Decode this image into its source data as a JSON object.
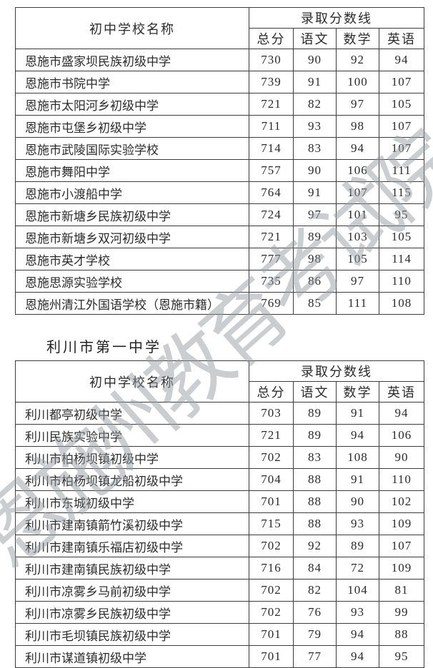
{
  "watermark": {
    "text": "恩施州教育考试院",
    "color": "#969EA5"
  },
  "colors": {
    "text": "#2B2B2B",
    "border": "#3C3C3C"
  },
  "tables": [
    {
      "title": "",
      "header": {
        "school_col": "初中学校名称",
        "score_group": "录取分数线",
        "subjects": [
          "总分",
          "语文",
          "数学",
          "英语"
        ]
      },
      "rows": [
        {
          "school": "恩施市盛家坝民族初级中学",
          "scores": [
            730,
            90,
            92,
            94
          ]
        },
        {
          "school": "恩施市书院中学",
          "scores": [
            739,
            91,
            100,
            107
          ]
        },
        {
          "school": "恩施市太阳河乡初级中学",
          "scores": [
            721,
            82,
            97,
            105
          ]
        },
        {
          "school": "恩施市屯堡乡初级中学",
          "scores": [
            711,
            93,
            98,
            107
          ]
        },
        {
          "school": "恩施市武陵国际实验学校",
          "scores": [
            714,
            83,
            94,
            107
          ]
        },
        {
          "school": "恩施市舞阳中学",
          "scores": [
            757,
            90,
            106,
            111
          ]
        },
        {
          "school": "恩施市小渡船中学",
          "scores": [
            764,
            91,
            107,
            115
          ]
        },
        {
          "school": "恩施市新塘乡民族初级中学",
          "scores": [
            724,
            97,
            101,
            95
          ]
        },
        {
          "school": "恩施市新塘乡双河初级中学",
          "scores": [
            721,
            89,
            103,
            105
          ]
        },
        {
          "school": "恩施市英才学校",
          "scores": [
            777,
            98,
            105,
            114
          ]
        },
        {
          "school": "恩施思源实验学校",
          "scores": [
            735,
            86,
            97,
            110
          ]
        },
        {
          "school": "恩施州清江外国语学校（恩施市籍）",
          "scores": [
            769,
            85,
            111,
            108
          ]
        }
      ]
    },
    {
      "title": "利川市第一中学",
      "header": {
        "school_col": "初中学校名称",
        "score_group": "录取分数线",
        "subjects": [
          "总分",
          "语文",
          "数学",
          "英语"
        ]
      },
      "rows": [
        {
          "school": "利川都亭初级中学",
          "scores": [
            703,
            89,
            91,
            94
          ]
        },
        {
          "school": "利川民族实验中学",
          "scores": [
            721,
            89,
            94,
            106
          ]
        },
        {
          "school": "利川市柏杨坝镇初级中学",
          "scores": [
            702,
            83,
            108,
            90
          ]
        },
        {
          "school": "利川市柏杨坝镇龙船初级中学",
          "scores": [
            704,
            88,
            91,
            110
          ]
        },
        {
          "school": "利川市东城初级中学",
          "scores": [
            701,
            88,
            90,
            102
          ]
        },
        {
          "school": "利川市建南镇箭竹溪初级中学",
          "scores": [
            715,
            88,
            93,
            109
          ]
        },
        {
          "school": "利川市建南镇乐福店初级中学",
          "scores": [
            702,
            92,
            89,
            107
          ]
        },
        {
          "school": "利川市建南镇民族初级中学",
          "scores": [
            716,
            84,
            72,
            109
          ]
        },
        {
          "school": "利川市凉雾乡马前初级中学",
          "scores": [
            702,
            82,
            104,
            81
          ]
        },
        {
          "school": "利川市凉雾乡民族初级中学",
          "scores": [
            702,
            76,
            93,
            99
          ]
        },
        {
          "school": "利川市毛坝镇民族初级中学",
          "scores": [
            701,
            79,
            94,
            88
          ]
        },
        {
          "school": "利川市谋道镇初级中学",
          "scores": [
            701,
            77,
            94,
            95
          ]
        }
      ]
    }
  ]
}
